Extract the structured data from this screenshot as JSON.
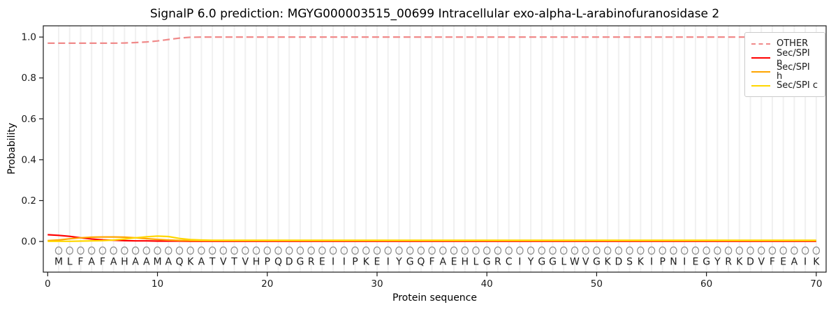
{
  "chart_data": {
    "type": "line",
    "title": "SignalP 6.0 prediction: MGYG000003515_00699 Intracellular exo-alpha-L-arabinofuranosidase 2",
    "xlabel": "Protein sequence",
    "ylabel": "Probability",
    "xlim": [
      -0.4,
      70.9
    ],
    "ylim": [
      -0.15,
      1.055
    ],
    "x_ticks": [
      0,
      10,
      20,
      30,
      40,
      50,
      60,
      70
    ],
    "y_ticks": [
      0.0,
      0.2,
      0.4,
      0.6,
      0.8,
      1.0
    ],
    "grid": "vertical gridline at every residue position",
    "gridline_color": "#f0f0f0",
    "legend_position": "upper right",
    "sequence": "MLFAFAHAAMAQKATVTVHPQDGREIIPKEIYGQFAEHLGRCIYGGLWVGKDSKIPNIEGYRKDVFEAIK",
    "x_note": "series values are indexed by sequence position 0-70; residue letters occupy positions 1-70",
    "marker_row": {
      "symbol": "open-circle",
      "color": "#8f8f8f",
      "y_value": -0.0445
    },
    "letter_row": {
      "color": "#1f1f1f",
      "y_value": -0.097
    },
    "series": [
      {
        "name": "OTHER",
        "color": "#f08a8a",
        "dash": true,
        "values": [
          0.97,
          0.97,
          0.97,
          0.97,
          0.97,
          0.97,
          0.97,
          0.971,
          0.973,
          0.976,
          0.981,
          0.988,
          0.995,
          0.999,
          1.0,
          1.0,
          1.0,
          1.0,
          1.0,
          1.0,
          1.0,
          1.0,
          1.0,
          1.0,
          1.0,
          1.0,
          1.0,
          1.0,
          1.0,
          1.0,
          1.0,
          1.0,
          1.0,
          1.0,
          1.0,
          1.0,
          1.0,
          1.0,
          1.0,
          1.0,
          1.0,
          1.0,
          1.0,
          1.0,
          1.0,
          1.0,
          1.0,
          1.0,
          1.0,
          1.0,
          1.0,
          1.0,
          1.0,
          1.0,
          1.0,
          1.0,
          1.0,
          1.0,
          1.0,
          1.0,
          1.0,
          1.0,
          1.0,
          1.0,
          1.0,
          1.0,
          1.0,
          1.0,
          1.0,
          1.0,
          1.0
        ]
      },
      {
        "name": "Sec/SPI n",
        "color": "#ff0000",
        "dash": false,
        "values": [
          0.033,
          0.03,
          0.025,
          0.018,
          0.012,
          0.008,
          0.006,
          0.004,
          0.003,
          0.003,
          0.002,
          0.002,
          0.002,
          0.001,
          0.001,
          0.001,
          0.001,
          0.001,
          0.001,
          0.001,
          0.001,
          0.001,
          0.001,
          0.001,
          0.001,
          0.001,
          0.001,
          0.001,
          0.001,
          0.001,
          0.001,
          0.001,
          0.001,
          0.001,
          0.001,
          0.001,
          0.001,
          0.001,
          0.001,
          0.001,
          0.001,
          0.001,
          0.001,
          0.001,
          0.001,
          0.001,
          0.001,
          0.001,
          0.001,
          0.001,
          0.001,
          0.001,
          0.001,
          0.001,
          0.001,
          0.001,
          0.001,
          0.001,
          0.001,
          0.001,
          0.001,
          0.001,
          0.001,
          0.001,
          0.001,
          0.001,
          0.001,
          0.001,
          0.001,
          0.001,
          0.001
        ]
      },
      {
        "name": "Sec/SPI h",
        "color": "#ffa500",
        "dash": false,
        "values": [
          0.004,
          0.007,
          0.013,
          0.018,
          0.021,
          0.022,
          0.022,
          0.021,
          0.018,
          0.014,
          0.01,
          0.007,
          0.005,
          0.004,
          0.004,
          0.004,
          0.004,
          0.004,
          0.004,
          0.004,
          0.004,
          0.004,
          0.004,
          0.004,
          0.004,
          0.004,
          0.004,
          0.004,
          0.004,
          0.004,
          0.004,
          0.004,
          0.004,
          0.004,
          0.004,
          0.004,
          0.004,
          0.004,
          0.004,
          0.004,
          0.004,
          0.004,
          0.004,
          0.004,
          0.004,
          0.004,
          0.004,
          0.004,
          0.004,
          0.004,
          0.004,
          0.004,
          0.004,
          0.004,
          0.004,
          0.004,
          0.004,
          0.004,
          0.004,
          0.004,
          0.004,
          0.004,
          0.004,
          0.004,
          0.004,
          0.004,
          0.004,
          0.004,
          0.004,
          0.004,
          0.004
        ]
      },
      {
        "name": "Sec/SPI c",
        "color": "#ffd700",
        "dash": false,
        "values": [
          0.001,
          0.001,
          0.001,
          0.002,
          0.003,
          0.004,
          0.007,
          0.012,
          0.018,
          0.023,
          0.026,
          0.024,
          0.015,
          0.009,
          0.007,
          0.006,
          0.006,
          0.006,
          0.006,
          0.006,
          0.006,
          0.006,
          0.006,
          0.006,
          0.006,
          0.006,
          0.006,
          0.006,
          0.006,
          0.006,
          0.006,
          0.006,
          0.006,
          0.006,
          0.006,
          0.006,
          0.006,
          0.006,
          0.006,
          0.006,
          0.006,
          0.006,
          0.006,
          0.006,
          0.006,
          0.006,
          0.006,
          0.006,
          0.006,
          0.006,
          0.006,
          0.006,
          0.006,
          0.006,
          0.006,
          0.006,
          0.006,
          0.006,
          0.006,
          0.006,
          0.006,
          0.006,
          0.006,
          0.006,
          0.006,
          0.006,
          0.006,
          0.006,
          0.006,
          0.006,
          0.006
        ]
      }
    ]
  }
}
